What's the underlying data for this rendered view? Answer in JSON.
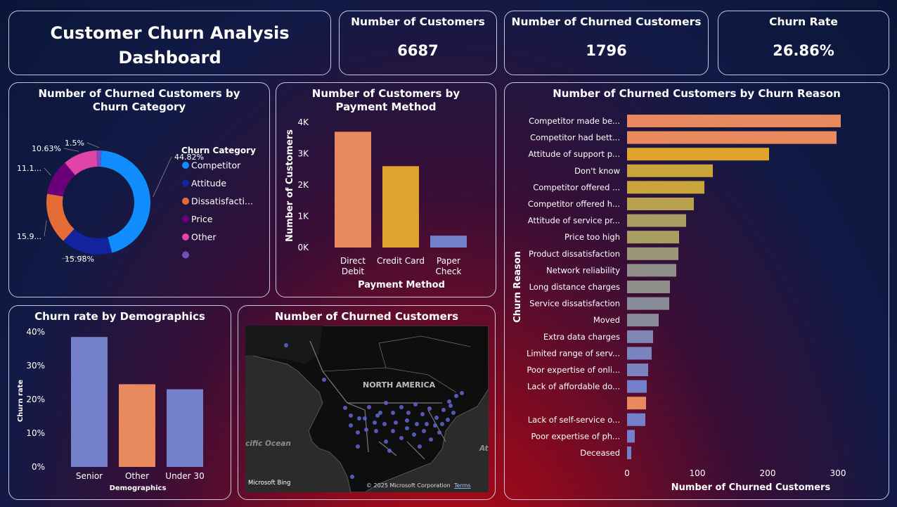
{
  "dashboard": {
    "title_line1": "Customer Churn Analysis",
    "title_line2": "Dashboard"
  },
  "kpis": [
    {
      "label": "Number of Customers",
      "value": "6687"
    },
    {
      "label": "Number of Churned Customers",
      "value": "1796"
    },
    {
      "label": "Churn Rate",
      "value": "26.86%"
    }
  ],
  "colors": {
    "blue": "#118dff",
    "navy": "#12239e",
    "orange": "#e66c37",
    "purple": "#6b007b",
    "pink": "#e044a7",
    "violet": "#744ec2",
    "bar_orange": "#e8895e",
    "bar_gold": "#e0a42e",
    "bar_lavender": "#7480c9"
  },
  "map": {
    "title": "Number of Churned Customers",
    "region_label": "NORTH AMERICA",
    "ocean_label": "cific Ocean",
    "ocean_label2": "At",
    "attribution": "© 2025 Microsoft Corporation",
    "terms": "Terms",
    "logo": "Microsoft Bing"
  },
  "chart_data": [
    {
      "id": "donut",
      "type": "pie",
      "title": "Number of Churned Customers by Churn Category",
      "legend_title": "Churn Category",
      "legend_position": "right",
      "categories": [
        "Competitor",
        "Attitude",
        "Dissatisfacti...",
        "Price",
        "Other",
        ""
      ],
      "values": [
        44.82,
        15.98,
        15.9,
        11.1,
        10.63,
        1.5
      ],
      "data_labels": [
        "44.82%",
        "15.98%",
        "15.9...",
        "11.1...",
        "10.63%",
        "1.5%"
      ]
    },
    {
      "id": "payment",
      "type": "bar",
      "title": "Number of Customers by Payment Method",
      "xlabel": "Payment Method",
      "ylabel": "Number of Customers",
      "categories": [
        [
          "Direct",
          "Debit"
        ],
        [
          "Credit Card"
        ],
        [
          "Paper",
          "Check"
        ]
      ],
      "values": [
        3700,
        2600,
        380
      ],
      "ylim": [
        0,
        4000
      ],
      "yticks": [
        "0K",
        "1K",
        "2K",
        "3K",
        "4K"
      ]
    },
    {
      "id": "demographics",
      "type": "bar",
      "title": "Churn rate by Demographics",
      "xlabel": "Demographics",
      "ylabel": "Churn rate",
      "categories": [
        "Senior",
        "Other",
        "Under 30"
      ],
      "values": [
        38.5,
        24.5,
        23
      ],
      "ylim": [
        0,
        40
      ],
      "yticks": [
        "0%",
        "10%",
        "20%",
        "30%",
        "40%"
      ]
    },
    {
      "id": "reasons",
      "type": "bar",
      "orientation": "horizontal",
      "title": "Number of Churned Customers by Churn Reason",
      "xlabel": "Number of Churned Customers",
      "ylabel": "Churn Reason",
      "xlim": [
        0,
        320
      ],
      "xticks": [
        "0",
        "100",
        "200",
        "300"
      ],
      "categories": [
        "Competitor made be...",
        "Competitor had bett...",
        "Attitude of support p...",
        "Don't know",
        "Competitor offered ...",
        "Competitor offered h...",
        "Attitude of service pr...",
        "Price too high",
        "Product dissatisfaction",
        "Network reliability",
        "Long distance charges",
        "Service dissatisfaction",
        "Moved",
        "Extra data charges",
        "Limited range of serv...",
        "Poor expertise of onli...",
        "Lack of affordable do...",
        "",
        "Lack of self-service o...",
        "Poor expertise of ph...",
        "Deceased"
      ],
      "values": [
        304,
        298,
        202,
        122,
        110,
        95,
        84,
        74,
        73,
        70,
        61,
        60,
        45,
        37,
        35,
        30,
        28,
        27,
        26,
        11,
        6
      ]
    }
  ]
}
